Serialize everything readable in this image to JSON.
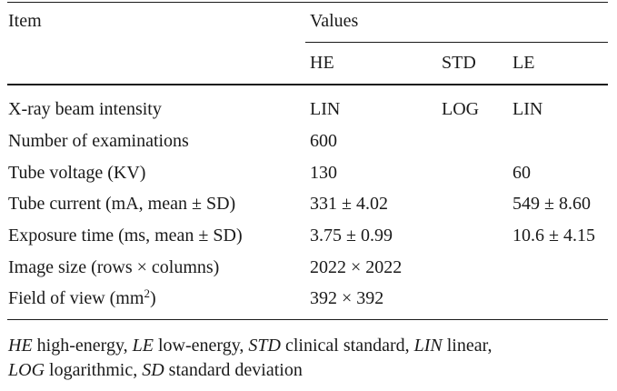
{
  "header": {
    "item": "Item",
    "values": "Values",
    "he": "HE",
    "std": "STD",
    "le": "LE"
  },
  "rows": [
    {
      "item": "X-ray beam intensity",
      "he": "LIN",
      "std": "LOG",
      "le": "LIN"
    },
    {
      "item": "Number of examinations",
      "he": "600",
      "std": "",
      "le": ""
    },
    {
      "item": "Tube voltage (KV)",
      "he": "130",
      "std": "",
      "le": "60"
    },
    {
      "item": "Tube current (mA, mean ± SD)",
      "he": "331 ± 4.02",
      "std": "",
      "le": "549 ± 8.60"
    },
    {
      "item": "Exposure time (ms, mean ± SD)",
      "he": "3.75 ± 0.99",
      "std": "",
      "le": "10.6 ± 4.15"
    },
    {
      "item": "Image size (rows × columns)",
      "he": "2022 × 2022",
      "std": "",
      "le": ""
    },
    {
      "item": "Field of view (mm",
      "item_sup": "2",
      "item_tail": ")",
      "he": "392 × 392",
      "std": "",
      "le": ""
    }
  ],
  "footnote": [
    {
      "abbr": "HE",
      "text": " high-energy, "
    },
    {
      "abbr": "LE",
      "text": " low-energy, "
    },
    {
      "abbr": "STD",
      "text": " clinical standard, "
    },
    {
      "abbr": "LIN",
      "text": " linear, "
    },
    {
      "abbr": "LOG",
      "text": " logarithmic, "
    },
    {
      "abbr": "SD",
      "text": " standard deviation"
    }
  ]
}
